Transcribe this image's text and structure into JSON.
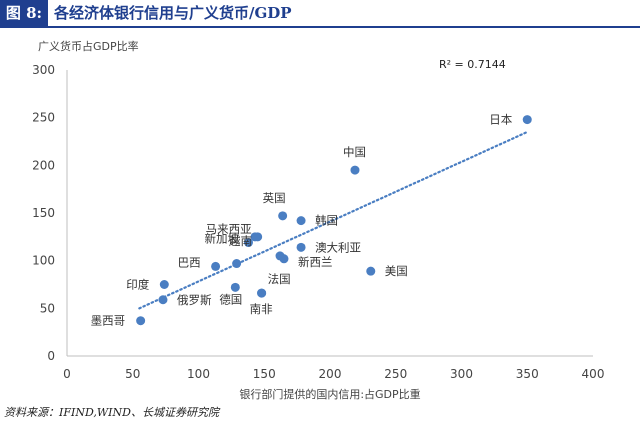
{
  "header": {
    "figure_tag": "图 8:",
    "title": "各经济体银行信用与广义货币/GDP"
  },
  "source_note": "资料来源：IFIND,WIND、长城证券研究院",
  "chart_data": {
    "type": "scatter",
    "title": "",
    "xlabel": "银行部门提供的国内信用:占GDP比重",
    "ylabel": "广义货币占GDP比率",
    "xlim": [
      0,
      400
    ],
    "ylim": [
      0,
      300
    ],
    "xticks": [
      0,
      50,
      100,
      150,
      200,
      250,
      300,
      350,
      400
    ],
    "yticks": [
      0,
      50,
      100,
      150,
      200,
      250,
      300
    ],
    "grid": false,
    "legend": "none",
    "annotation": "R² = 0.7144",
    "trendline": {
      "style": "dotted",
      "x": [
        55,
        350
      ],
      "y": [
        50,
        235
      ]
    },
    "points": [
      {
        "label": "日本",
        "x": 350,
        "y": 248
      },
      {
        "label": "中国",
        "x": 219,
        "y": 195
      },
      {
        "label": "英国",
        "x": 164,
        "y": 147
      },
      {
        "label": "韩国",
        "x": 178,
        "y": 142
      },
      {
        "label": "马来西亚",
        "x": 145,
        "y": 125
      },
      {
        "label": "越南",
        "x": 143,
        "y": 125
      },
      {
        "label": "新加坡",
        "x": 138,
        "y": 119
      },
      {
        "label": "澳大利亚",
        "x": 178,
        "y": 114
      },
      {
        "label": "新西兰",
        "x": 162,
        "y": 105
      },
      {
        "label": "",
        "x": 165,
        "y": 102
      },
      {
        "label": "巴西",
        "x": 113,
        "y": 94
      },
      {
        "label": "",
        "x": 129,
        "y": 97
      },
      {
        "label": "美国",
        "x": 231,
        "y": 89
      },
      {
        "label": "法国",
        "x": 148,
        "y": 66
      },
      {
        "label": "印度",
        "x": 74,
        "y": 75
      },
      {
        "label": "俄罗斯",
        "x": 73,
        "y": 59
      },
      {
        "label": "德国",
        "x": 128,
        "y": 72
      },
      {
        "label": "南非",
        "x": 148,
        "y": 66
      },
      {
        "label": "墨西哥",
        "x": 56,
        "y": 37
      }
    ]
  },
  "colors": {
    "point": "#4a7ec2",
    "trendline": "#4a7ec2",
    "brand": "#1f3f8f"
  }
}
